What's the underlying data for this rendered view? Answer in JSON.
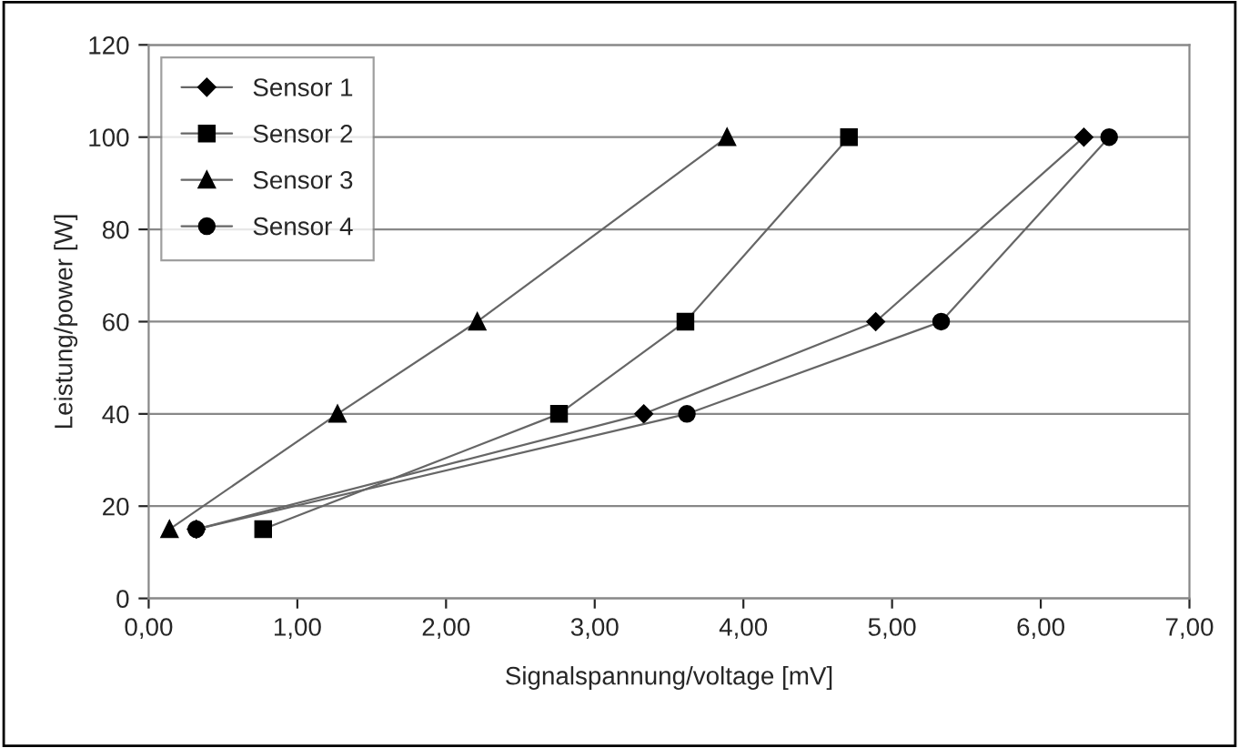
{
  "chart_data": {
    "type": "line",
    "xlabel": "Signalspannung/voltage [mV]",
    "ylabel": "Leistung/power [W]",
    "xlim": [
      0,
      7
    ],
    "xticks": [
      {
        "value": 0,
        "label": "0,00"
      },
      {
        "value": 1,
        "label": "1,00"
      },
      {
        "value": 2,
        "label": "2,00"
      },
      {
        "value": 3,
        "label": "3,00"
      },
      {
        "value": 4,
        "label": "4,00"
      },
      {
        "value": 5,
        "label": "5,00"
      },
      {
        "value": 6,
        "label": "6,00"
      },
      {
        "value": 7,
        "label": "7,00"
      }
    ],
    "ylim": [
      0,
      120
    ],
    "yticks": [
      0,
      20,
      40,
      60,
      80,
      100,
      120
    ],
    "grid": "y",
    "legend": "top left",
    "line_style": "solid",
    "series": [
      {
        "name": "Sensor 1",
        "color": "#000000",
        "marker": "diamond",
        "x": [
          0.32,
          3.33,
          4.89,
          6.29
        ],
        "values": [
          15,
          40,
          60,
          100
        ]
      },
      {
        "name": "Sensor 2",
        "color": "#000000",
        "marker": "square",
        "x": [
          0.77,
          2.76,
          3.61,
          4.71
        ],
        "values": [
          15,
          40,
          60,
          100
        ]
      },
      {
        "name": "Sensor 3",
        "color": "#000000",
        "marker": "triangle",
        "x": [
          0.14,
          1.27,
          2.21,
          3.89
        ],
        "values": [
          15,
          40,
          60,
          100
        ]
      },
      {
        "name": "Sensor 4",
        "color": "#000000",
        "marker": "circle",
        "x": [
          0.32,
          3.62,
          5.33,
          6.46
        ],
        "values": [
          15,
          40,
          60,
          100
        ]
      }
    ]
  }
}
